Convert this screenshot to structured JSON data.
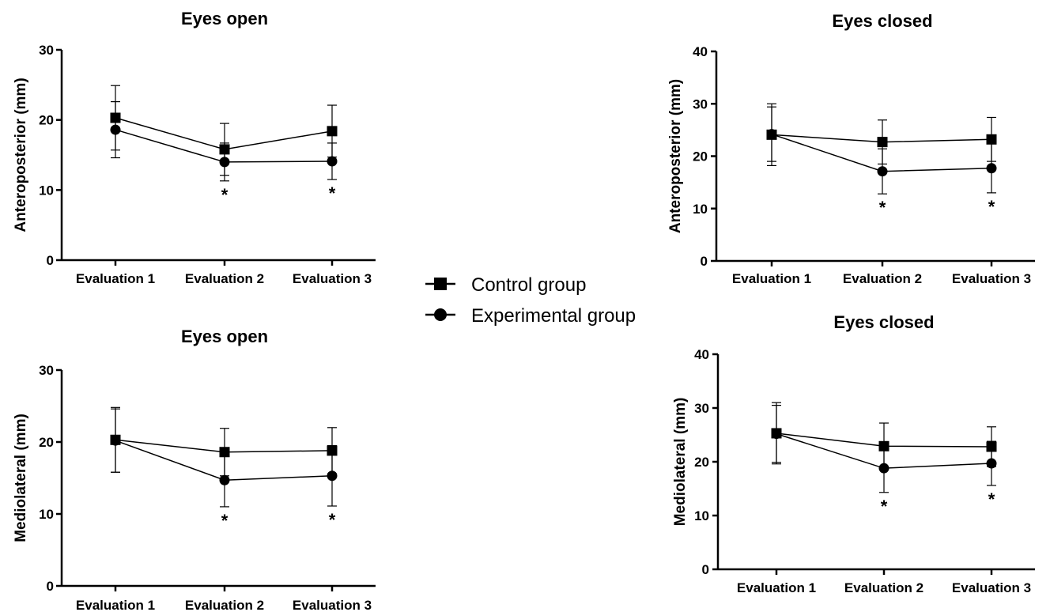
{
  "legend": {
    "items": [
      {
        "label": "Control group",
        "marker": "square"
      },
      {
        "label": "Experimental group",
        "marker": "circle"
      }
    ]
  },
  "chart_data": [
    {
      "type": "line",
      "title": "Eyes open",
      "ylabel": "Anteroposterior (mm)",
      "xlabel": "",
      "categories": [
        "Evaluation 1",
        "Evaluation 2",
        "Evaluation 3"
      ],
      "ylim": [
        0,
        30
      ],
      "yticks": [
        0,
        10,
        20,
        30
      ],
      "series": [
        {
          "name": "Control group",
          "marker": "square",
          "values": [
            20.3,
            15.8,
            18.4
          ],
          "errors": [
            4.6,
            3.7,
            3.7
          ]
        },
        {
          "name": "Experimental group",
          "marker": "circle",
          "values": [
            18.6,
            14.0,
            14.1
          ],
          "errors": [
            4.0,
            2.7,
            2.6
          ]
        }
      ],
      "annotations": [
        {
          "category": "Evaluation 2",
          "text": "*"
        },
        {
          "category": "Evaluation 3",
          "text": "*"
        }
      ]
    },
    {
      "type": "line",
      "title": "Eyes closed",
      "ylabel": "Anteroposterior (mm)",
      "xlabel": "",
      "categories": [
        "Evaluation 1",
        "Evaluation 2",
        "Evaluation 3"
      ],
      "ylim": [
        0,
        40
      ],
      "yticks": [
        0,
        10,
        20,
        30,
        40
      ],
      "series": [
        {
          "name": "Control group",
          "marker": "square",
          "values": [
            24.1,
            22.7,
            23.2
          ],
          "errors": [
            5.9,
            4.2,
            4.2
          ]
        },
        {
          "name": "Experimental group",
          "marker": "circle",
          "values": [
            24.2,
            17.1,
            17.7
          ],
          "errors": [
            5.2,
            4.3,
            4.7
          ]
        }
      ],
      "annotations": [
        {
          "category": "Evaluation 2",
          "text": "*"
        },
        {
          "category": "Evaluation 3",
          "text": "*"
        }
      ]
    },
    {
      "type": "line",
      "title": "Eyes open",
      "ylabel": "Mediolateral (mm)",
      "xlabel": "",
      "categories": [
        "Evaluation 1",
        "Evaluation 2",
        "Evaluation 3"
      ],
      "ylim": [
        0,
        30
      ],
      "yticks": [
        0,
        10,
        20,
        30
      ],
      "series": [
        {
          "name": "Control group",
          "marker": "square",
          "values": [
            20.3,
            18.6,
            18.8
          ],
          "errors": [
            4.5,
            3.3,
            3.2
          ]
        },
        {
          "name": "Experimental group",
          "marker": "circle",
          "values": [
            20.2,
            14.7,
            15.3
          ],
          "errors": [
            4.4,
            3.7,
            4.2
          ]
        }
      ],
      "annotations": [
        {
          "category": "Evaluation 2",
          "text": "*"
        },
        {
          "category": "Evaluation 3",
          "text": "*"
        }
      ]
    },
    {
      "type": "line",
      "title": "Eyes closed",
      "ylabel": "Mediolateral (mm)",
      "xlabel": "",
      "categories": [
        "Evaluation 1",
        "Evaluation 2",
        "Evaluation 3"
      ],
      "ylim": [
        0,
        40
      ],
      "yticks": [
        0,
        10,
        20,
        30,
        40
      ],
      "series": [
        {
          "name": "Control group",
          "marker": "square",
          "values": [
            25.3,
            22.9,
            22.8
          ],
          "errors": [
            5.7,
            4.3,
            3.7
          ]
        },
        {
          "name": "Experimental group",
          "marker": "circle",
          "values": [
            25.2,
            18.8,
            19.7
          ],
          "errors": [
            5.3,
            4.5,
            4.1
          ]
        }
      ],
      "annotations": [
        {
          "category": "Evaluation 2",
          "text": "*"
        },
        {
          "category": "Evaluation 3",
          "text": "*"
        }
      ]
    }
  ]
}
